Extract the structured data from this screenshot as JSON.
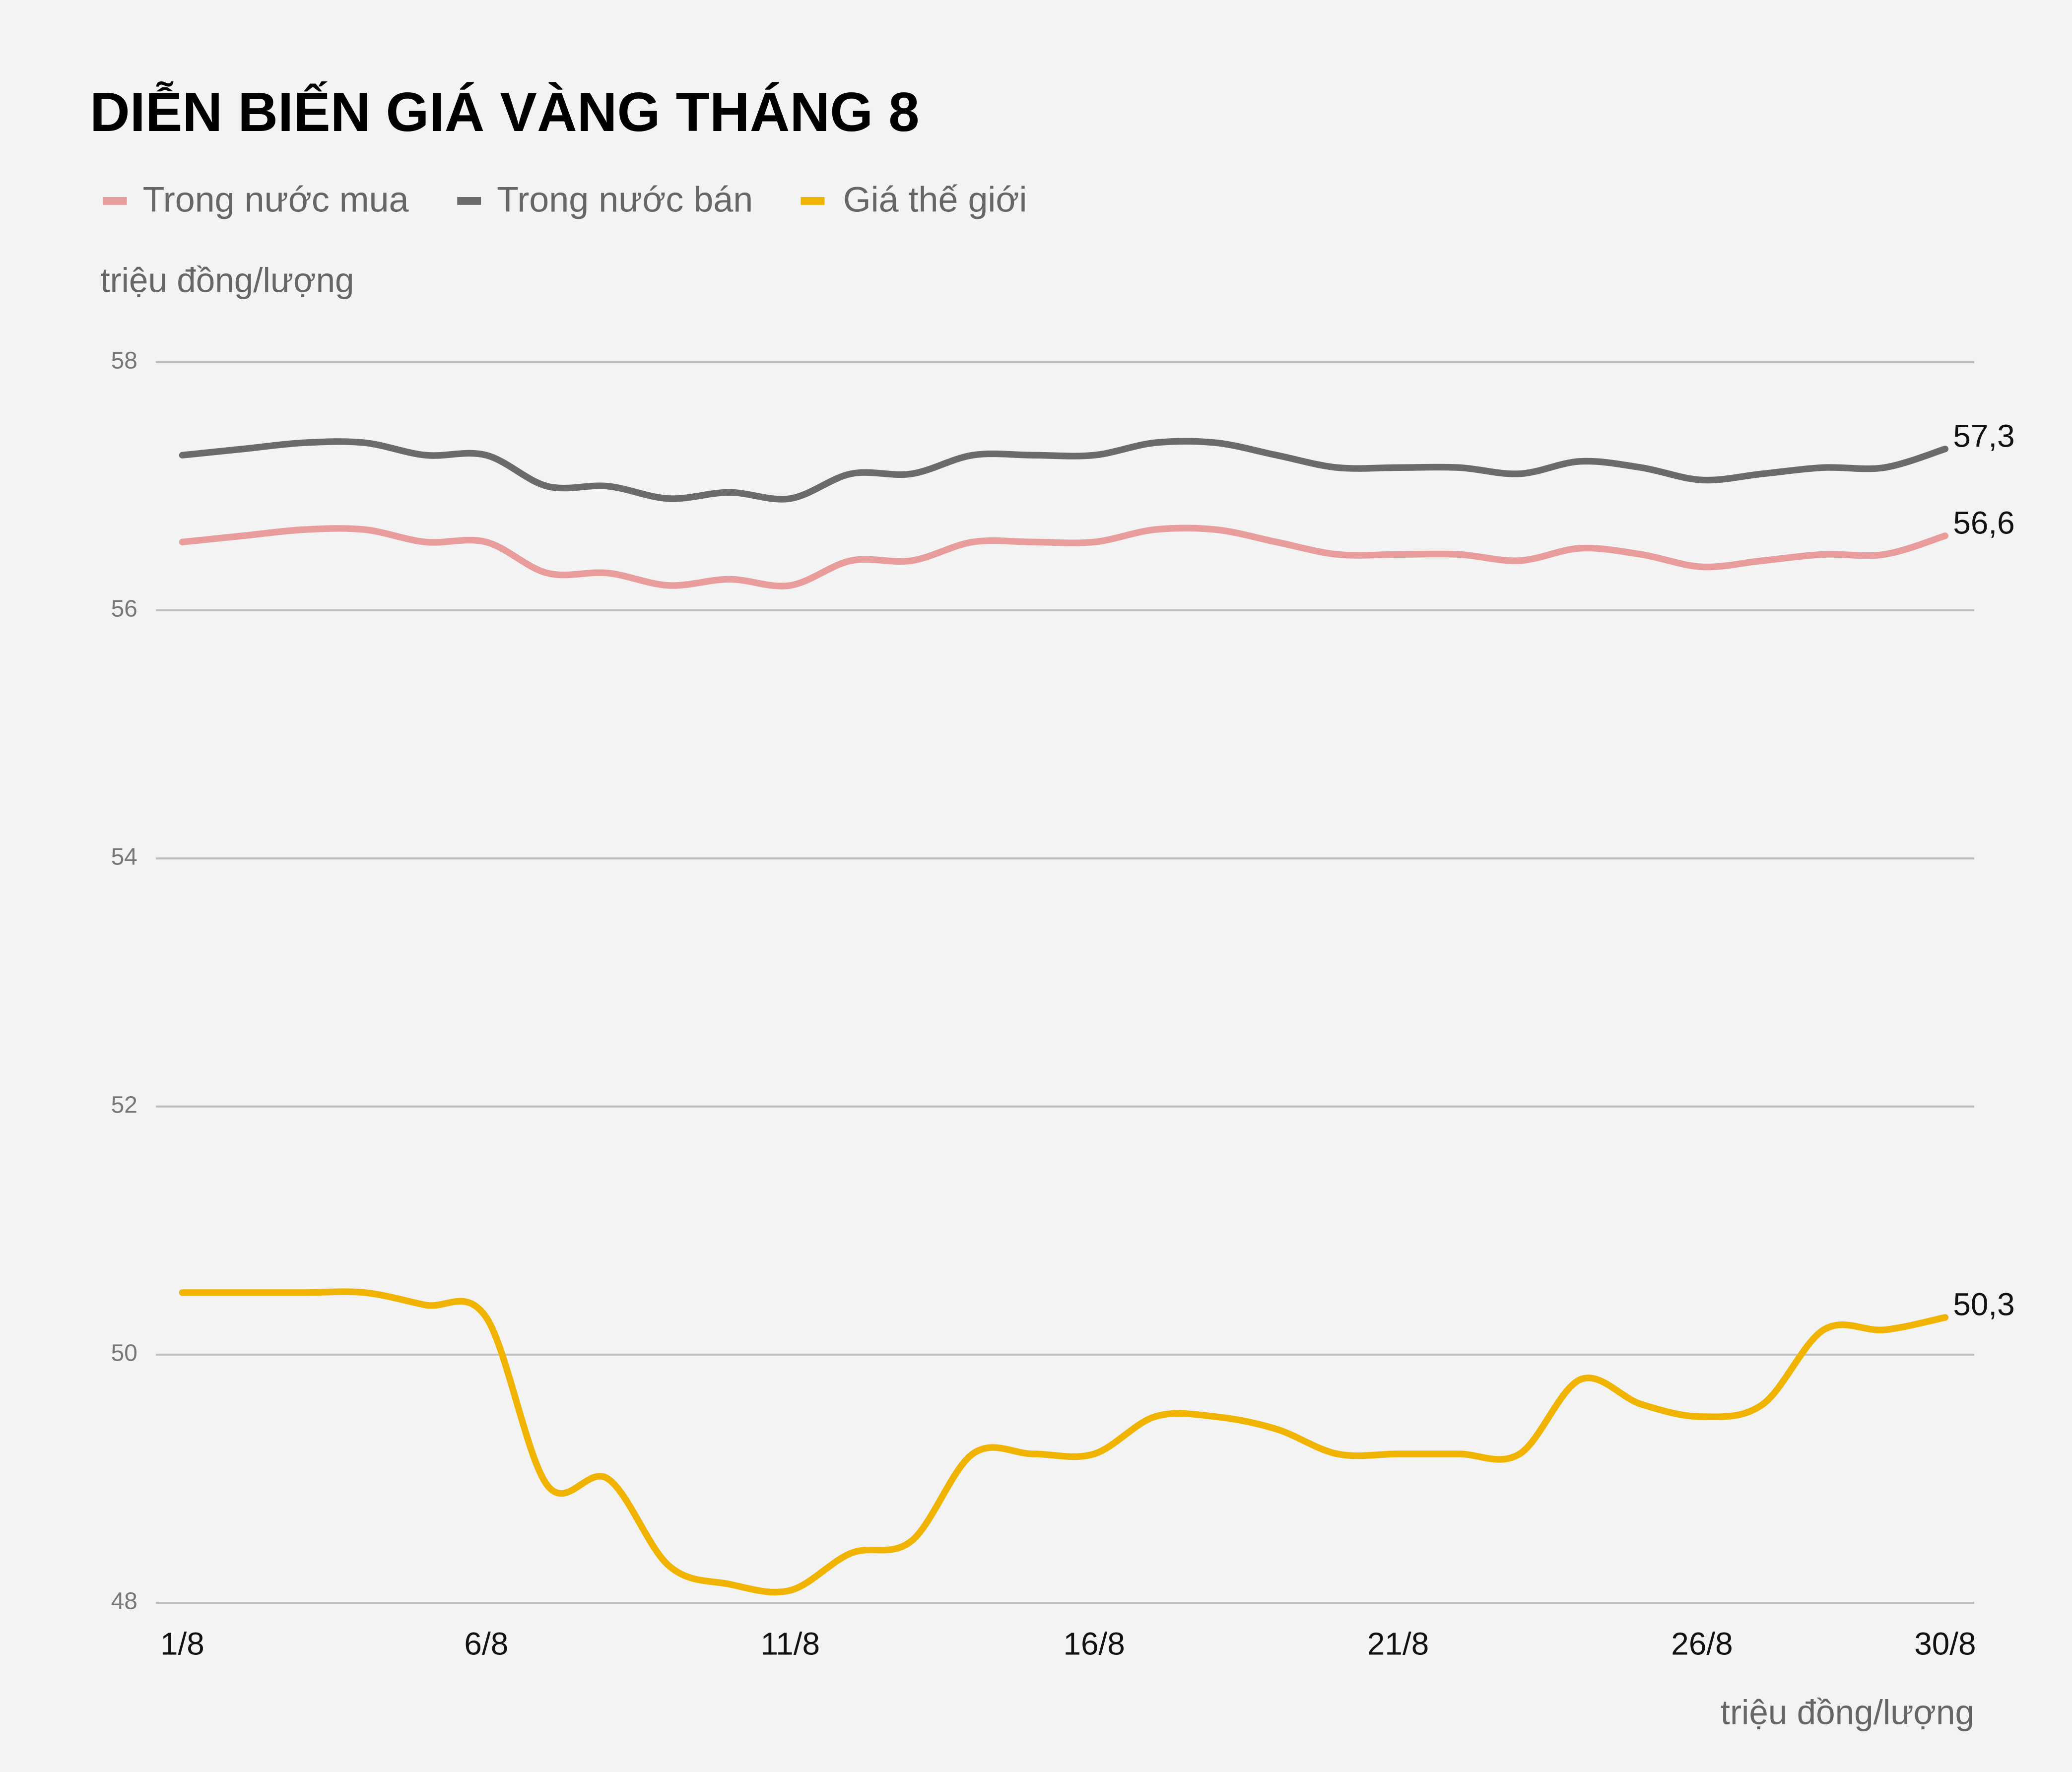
{
  "chart_data": {
    "type": "line",
    "title": "DIỄN BIẾN GIÁ VÀNG THÁNG 8",
    "y_label": "triệu đồng/lượng",
    "x_label": "triệu đồng/lượng",
    "categories": [
      "1/8",
      null,
      null,
      null,
      null,
      "6/8",
      null,
      null,
      null,
      null,
      "11/8",
      null,
      null,
      null,
      null,
      "16/8",
      null,
      null,
      null,
      null,
      "21/8",
      null,
      null,
      null,
      null,
      "26/8",
      null,
      null,
      null,
      "30/8"
    ],
    "series": [
      {
        "name": "Trong nước mua",
        "color": "#e89c9c",
        "values": [
          56.55,
          56.6,
          56.65,
          56.65,
          56.55,
          56.55,
          56.3,
          56.3,
          56.2,
          56.25,
          56.2,
          56.4,
          56.4,
          56.55,
          56.55,
          56.55,
          56.65,
          56.65,
          56.55,
          56.45,
          56.45,
          56.45,
          56.4,
          56.5,
          56.45,
          56.35,
          56.4,
          56.45,
          56.45,
          56.6
        ],
        "value_labels": [
          null,
          null,
          null,
          null,
          null,
          null,
          null,
          null,
          null,
          null,
          null,
          null,
          null,
          null,
          null,
          null,
          null,
          null,
          null,
          null,
          null,
          null,
          null,
          null,
          null,
          null,
          null,
          null,
          null,
          "56,6"
        ]
      },
      {
        "name": "Trong nước bán",
        "color": "#6b6b6b",
        "values": [
          57.25,
          57.3,
          57.35,
          57.35,
          57.25,
          57.25,
          57.0,
          57.0,
          56.9,
          56.95,
          56.9,
          57.1,
          57.1,
          57.25,
          57.25,
          57.25,
          57.35,
          57.35,
          57.25,
          57.15,
          57.15,
          57.15,
          57.1,
          57.2,
          57.15,
          57.05,
          57.1,
          57.15,
          57.15,
          57.3
        ],
        "value_labels": [
          null,
          null,
          null,
          null,
          null,
          null,
          null,
          null,
          null,
          null,
          null,
          null,
          null,
          null,
          null,
          null,
          null,
          null,
          null,
          null,
          null,
          null,
          null,
          null,
          null,
          null,
          null,
          null,
          null,
          "57,3"
        ]
      },
      {
        "name": "Giá thế giới",
        "color": "#f0b400",
        "values": [
          50.5,
          50.5,
          50.5,
          50.5,
          50.4,
          50.3,
          48.95,
          49.0,
          48.3,
          48.15,
          48.1,
          48.4,
          48.5,
          49.2,
          49.2,
          49.2,
          49.5,
          49.5,
          49.4,
          49.2,
          49.2,
          49.2,
          49.2,
          49.8,
          49.6,
          49.5,
          49.6,
          50.2,
          50.2,
          50.3
        ],
        "value_labels": [
          null,
          null,
          null,
          null,
          null,
          null,
          null,
          null,
          null,
          null,
          null,
          null,
          null,
          null,
          null,
          null,
          null,
          null,
          null,
          null,
          null,
          null,
          null,
          null,
          null,
          null,
          null,
          null,
          null,
          "50,3"
        ]
      }
    ],
    "ylim": [
      48,
      58
    ],
    "yticks": [
      48,
      50,
      52,
      54,
      56,
      58
    ],
    "grid": true
  }
}
